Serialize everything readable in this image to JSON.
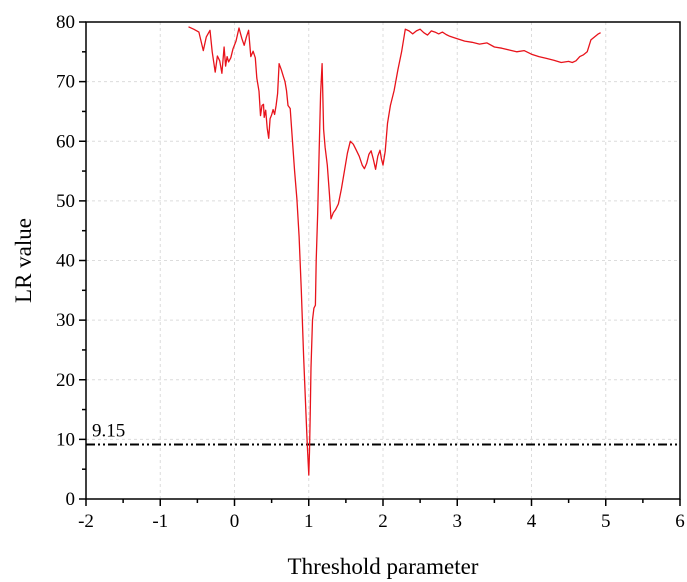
{
  "chart_data": {
    "type": "line",
    "title": "",
    "xlabel": "Threshold parameter",
    "ylabel": "LR value",
    "xlim": [
      -2,
      6
    ],
    "ylim": [
      0,
      80
    ],
    "x_ticks": [
      -2,
      -1,
      0,
      1,
      2,
      3,
      4,
      5,
      6
    ],
    "y_ticks": [
      0,
      10,
      20,
      30,
      40,
      50,
      60,
      70,
      80
    ],
    "x_tick_labels": [
      "-2",
      "-1",
      "0",
      "1",
      "2",
      "3",
      "4",
      "5",
      "6"
    ],
    "y_tick_labels": [
      "0",
      "10",
      "20",
      "30",
      "40",
      "50",
      "60",
      "70",
      "80"
    ],
    "grid": true,
    "series": [
      {
        "color": "#e8131b",
        "x": [
          -0.62,
          -0.55,
          -0.48,
          -0.42,
          -0.38,
          -0.33,
          -0.3,
          -0.26,
          -0.23,
          -0.2,
          -0.17,
          -0.14,
          -0.12,
          -0.1,
          -0.08,
          -0.05,
          -0.02,
          0.02,
          0.06,
          0.1,
          0.13,
          0.16,
          0.19,
          0.22,
          0.25,
          0.28,
          0.3,
          0.33,
          0.35,
          0.37,
          0.39,
          0.4,
          0.42,
          0.44,
          0.46,
          0.48,
          0.5,
          0.52,
          0.54,
          0.56,
          0.58,
          0.6,
          0.63,
          0.66,
          0.68,
          0.7,
          0.72,
          0.75,
          0.78,
          0.81,
          0.84,
          0.87,
          0.9,
          0.93,
          0.96,
          0.98,
          1.0,
          1.01,
          1.02,
          1.03,
          1.05,
          1.07,
          1.09,
          1.1,
          1.12,
          1.14,
          1.16,
          1.18,
          1.2,
          1.22,
          1.25,
          1.28,
          1.3,
          1.33,
          1.36,
          1.4,
          1.44,
          1.48,
          1.52,
          1.56,
          1.6,
          1.64,
          1.68,
          1.72,
          1.75,
          1.78,
          1.81,
          1.84,
          1.87,
          1.9,
          1.93,
          1.96,
          1.98,
          2.0,
          2.03,
          2.06,
          2.1,
          2.15,
          2.2,
          2.25,
          2.3,
          2.35,
          2.4,
          2.45,
          2.5,
          2.55,
          2.6,
          2.65,
          2.7,
          2.75,
          2.8,
          2.85,
          2.9,
          2.95,
          3.0,
          3.1,
          3.2,
          3.3,
          3.4,
          3.5,
          3.6,
          3.7,
          3.8,
          3.9,
          4.0,
          4.1,
          4.2,
          4.3,
          4.4,
          4.5,
          4.55,
          4.6,
          4.65,
          4.7,
          4.75,
          4.8,
          4.85,
          4.9,
          4.93
        ],
        "y": [
          79.2,
          78.8,
          78.3,
          75.2,
          77.5,
          78.6,
          75.0,
          71.6,
          74.3,
          73.5,
          71.4,
          75.8,
          72.6,
          74.2,
          73.3,
          74.0,
          75.5,
          76.8,
          79.0,
          77.2,
          76.1,
          77.5,
          78.6,
          74.2,
          75.1,
          74.0,
          70.6,
          68.4,
          64.3,
          66.0,
          66.2,
          64.0,
          65.2,
          62.2,
          60.5,
          63.8,
          64.4,
          65.3,
          64.5,
          66.0,
          68.0,
          73.0,
          72.0,
          70.8,
          70.0,
          68.5,
          66.0,
          65.5,
          60.2,
          55.0,
          50.3,
          44.0,
          35.0,
          24.0,
          15.0,
          9.0,
          4.0,
          8.0,
          14.0,
          22.0,
          30.0,
          32.0,
          32.5,
          40.0,
          48.0,
          58.0,
          68.0,
          73.0,
          62.0,
          59.0,
          56.0,
          51.0,
          47.0,
          48.0,
          48.5,
          49.5,
          52.0,
          55.0,
          58.0,
          60.0,
          59.5,
          58.5,
          57.5,
          56.0,
          55.4,
          56.3,
          57.8,
          58.4,
          57.0,
          55.3,
          57.5,
          58.5,
          57.0,
          56.0,
          58.3,
          63.0,
          66.0,
          68.5,
          72.0,
          75.0,
          78.8,
          78.5,
          78.0,
          78.5,
          78.8,
          78.2,
          77.8,
          78.5,
          78.3,
          78.0,
          78.3,
          77.9,
          77.6,
          77.4,
          77.2,
          76.8,
          76.6,
          76.3,
          76.5,
          75.8,
          75.6,
          75.3,
          75.0,
          75.2,
          74.6,
          74.2,
          73.9,
          73.6,
          73.2,
          73.4,
          73.2,
          73.5,
          74.2,
          74.5,
          75.0,
          77.0,
          77.5,
          78.0,
          78.2
        ]
      }
    ],
    "reference_line": {
      "y": 9.15,
      "label": "9.15",
      "color": "#000000",
      "style": "dash-dot-dot"
    }
  }
}
